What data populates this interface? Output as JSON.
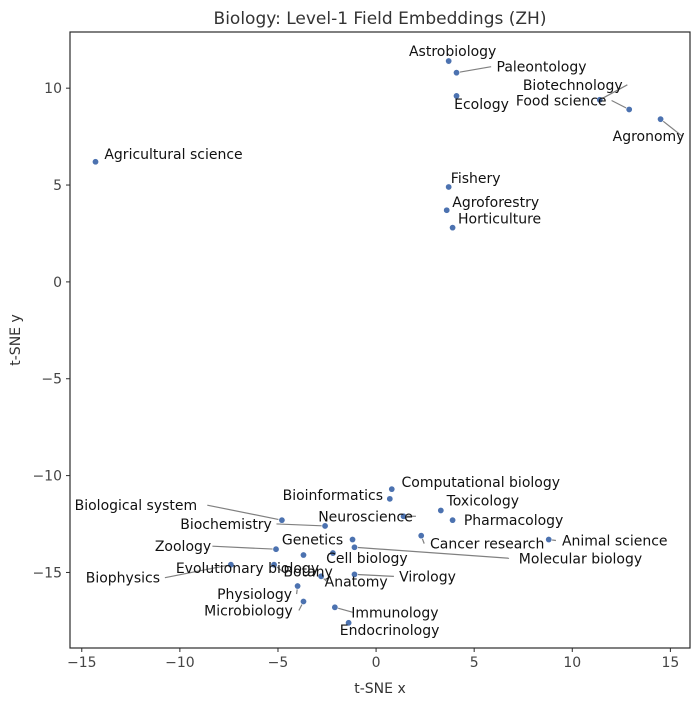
{
  "chart_data": {
    "type": "scatter",
    "title": "Biology: Level-1 Field Embeddings (ZH)",
    "xlabel": "t-SNE x",
    "ylabel": "t-SNE y",
    "xlim": [
      -15.6,
      16.0
    ],
    "ylim": [
      -18.9,
      12.9
    ],
    "xticks": [
      -15,
      -10,
      -5,
      0,
      5,
      10,
      15
    ],
    "yticks": [
      -15,
      -10,
      -5,
      0,
      5,
      10
    ],
    "xtick_labels": [
      "−15",
      "−10",
      "−5",
      "0",
      "5",
      "10",
      "15"
    ],
    "ytick_labels": [
      "−15",
      "−10",
      "−5",
      "0",
      "5",
      "10"
    ],
    "grid": false,
    "point_color": "#4c72b0",
    "leader_color": "#808080",
    "points": [
      {
        "label": "Astrobiology",
        "x": 3.7,
        "y": 11.4
      },
      {
        "label": "Paleontology",
        "x": 4.1,
        "y": 10.8
      },
      {
        "label": "Ecology",
        "x": 4.1,
        "y": 9.6
      },
      {
        "label": "Biotechnology",
        "x": 11.4,
        "y": 9.4
      },
      {
        "label": "Food science",
        "x": 12.9,
        "y": 8.9
      },
      {
        "label": "Agronomy",
        "x": 14.5,
        "y": 8.4
      },
      {
        "label": "Agricultural science",
        "x": -14.3,
        "y": 6.2
      },
      {
        "label": "Fishery",
        "x": 3.7,
        "y": 4.9
      },
      {
        "label": "Agroforestry",
        "x": 3.6,
        "y": 3.7
      },
      {
        "label": "Horticulture",
        "x": 3.9,
        "y": 2.8
      },
      {
        "label": "Computational biology",
        "x": 0.8,
        "y": -10.7
      },
      {
        "label": "Bioinformatics",
        "x": 0.7,
        "y": -11.2
      },
      {
        "label": "Toxicology",
        "x": 3.3,
        "y": -11.8
      },
      {
        "label": "Neuroscience",
        "x": 1.4,
        "y": -12.1
      },
      {
        "label": "Biological system",
        "x": -4.8,
        "y": -12.3
      },
      {
        "label": "Pharmacology",
        "x": 3.9,
        "y": -12.3
      },
      {
        "label": "Biochemistry",
        "x": -2.6,
        "y": -12.6
      },
      {
        "label": "Cancer research",
        "x": 2.3,
        "y": -13.1
      },
      {
        "label": "Genetics",
        "x": -1.2,
        "y": -13.3
      },
      {
        "label": "Animal science",
        "x": 8.8,
        "y": -13.3
      },
      {
        "label": "Molecular biology",
        "x": -1.1,
        "y": -13.7
      },
      {
        "label": "Zoology",
        "x": -5.1,
        "y": -13.8
      },
      {
        "label": "Cell biology",
        "x": -2.2,
        "y": -14.0
      },
      {
        "label": "Evolutionary biology",
        "x": -3.7,
        "y": -14.1
      },
      {
        "label": "Biophysics",
        "x": -7.4,
        "y": -14.6
      },
      {
        "label": "Botany",
        "x": -5.2,
        "y": -14.6
      },
      {
        "label": "Virology",
        "x": -1.1,
        "y": -15.1
      },
      {
        "label": "Anatomy",
        "x": -2.8,
        "y": -15.2
      },
      {
        "label": "Physiology",
        "x": -4.0,
        "y": -15.7
      },
      {
        "label": "Microbiology",
        "x": -3.7,
        "y": -16.5
      },
      {
        "label": "Immunology",
        "x": -2.1,
        "y": -16.8
      },
      {
        "label": "Endocrinology",
        "x": -1.4,
        "y": -17.6
      }
    ]
  }
}
